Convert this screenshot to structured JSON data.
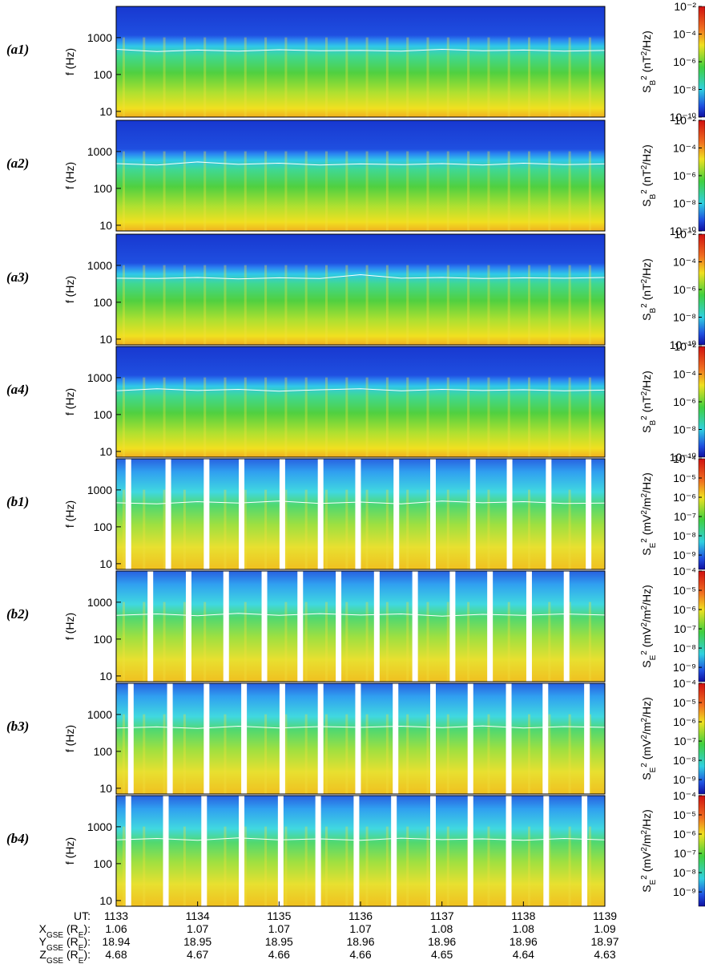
{
  "chart_data": [
    {
      "type": "spectrogram",
      "label": "(a1)",
      "ylabel": "f (Hz)",
      "scale": "a",
      "ylim": [
        7,
        7000
      ],
      "yticks": [
        10,
        100,
        1000
      ],
      "xlim": [
        1133,
        1139
      ],
      "colorbar": {
        "label": [
          "S",
          "B",
          "2",
          " (nT",
          "2",
          "/Hz)"
        ],
        "lim": [
          1e-10,
          0.01
        ],
        "ticks": [
          {
            "value": 0.01,
            "label": "10⁻²"
          },
          {
            "value": 0.0001,
            "label": "10⁻⁴"
          },
          {
            "value": 1e-06,
            "label": "10⁻⁶"
          },
          {
            "value": 1e-08,
            "label": "10⁻⁸"
          },
          {
            "value": 1e-10,
            "label": "10⁻¹⁰"
          }
        ]
      },
      "line": {
        "x": [
          1133,
          1133.5,
          1134,
          1134.5,
          1135,
          1135.5,
          1136,
          1136.5,
          1137,
          1137.5,
          1138,
          1138.5,
          1139
        ],
        "values": [
          480,
          420,
          460,
          430,
          470,
          440,
          450,
          430,
          480,
          440,
          460,
          430,
          450
        ]
      },
      "gaps": []
    },
    {
      "type": "spectrogram",
      "label": "(a2)",
      "ylabel": "f (Hz)",
      "scale": "a",
      "ylim": [
        7,
        7000
      ],
      "yticks": [
        10,
        100,
        1000
      ],
      "xlim": [
        1133,
        1139
      ],
      "colorbar": {
        "label": [
          "S",
          "B",
          "2",
          " (nT",
          "2",
          "/Hz)"
        ],
        "lim": [
          1e-10,
          0.01
        ],
        "ticks": [
          {
            "value": 0.01,
            "label": "10⁻²"
          },
          {
            "value": 0.0001,
            "label": "10⁻⁴"
          },
          {
            "value": 1e-06,
            "label": "10⁻⁶"
          },
          {
            "value": 1e-08,
            "label": "10⁻⁸"
          },
          {
            "value": 1e-10,
            "label": "10⁻¹⁰"
          }
        ]
      },
      "line": {
        "x": [
          1133,
          1133.5,
          1134,
          1134.5,
          1135,
          1135.5,
          1136,
          1136.5,
          1137,
          1137.5,
          1138,
          1138.5,
          1139
        ],
        "values": [
          470,
          430,
          520,
          450,
          480,
          430,
          460,
          440,
          470,
          430,
          480,
          440,
          460
        ]
      },
      "gaps": []
    },
    {
      "type": "spectrogram",
      "label": "(a3)",
      "ylabel": "f (Hz)",
      "scale": "a",
      "ylim": [
        7,
        7000
      ],
      "yticks": [
        10,
        100,
        1000
      ],
      "xlim": [
        1133,
        1139
      ],
      "colorbar": {
        "label": [
          "S",
          "B",
          "2",
          " (nT",
          "2",
          "/Hz)"
        ],
        "lim": [
          1e-10,
          0.01
        ],
        "ticks": [
          {
            "value": 0.01,
            "label": "10⁻²"
          },
          {
            "value": 0.0001,
            "label": "10⁻⁴"
          },
          {
            "value": 1e-06,
            "label": "10⁻⁶"
          },
          {
            "value": 1e-08,
            "label": "10⁻⁸"
          },
          {
            "value": 1e-10,
            "label": "10⁻¹⁰"
          }
        ]
      },
      "line": {
        "x": [
          1133,
          1133.5,
          1134,
          1134.5,
          1135,
          1135.5,
          1136,
          1136.5,
          1137,
          1137.5,
          1138,
          1138.5,
          1139
        ],
        "values": [
          450,
          440,
          470,
          430,
          460,
          440,
          560,
          450,
          470,
          440,
          460,
          450,
          470
        ]
      },
      "gaps": []
    },
    {
      "type": "spectrogram",
      "label": "(a4)",
      "ylabel": "f (Hz)",
      "scale": "a",
      "ylim": [
        7,
        7000
      ],
      "yticks": [
        10,
        100,
        1000
      ],
      "xlim": [
        1133,
        1139
      ],
      "colorbar": {
        "label": [
          "S",
          "B",
          "2",
          " (nT",
          "2",
          "/Hz)"
        ],
        "lim": [
          1e-10,
          0.01
        ],
        "ticks": [
          {
            "value": 0.01,
            "label": "10⁻²"
          },
          {
            "value": 0.0001,
            "label": "10⁻⁴"
          },
          {
            "value": 1e-06,
            "label": "10⁻⁶"
          },
          {
            "value": 1e-08,
            "label": "10⁻⁸"
          },
          {
            "value": 1e-10,
            "label": "10⁻¹⁰"
          }
        ]
      },
      "line": {
        "x": [
          1133,
          1133.5,
          1134,
          1134.5,
          1135,
          1135.5,
          1136,
          1136.5,
          1137,
          1137.5,
          1138,
          1138.5,
          1139
        ],
        "values": [
          440,
          500,
          450,
          480,
          430,
          470,
          500,
          440,
          480,
          450,
          470,
          440,
          460
        ]
      },
      "gaps": []
    },
    {
      "type": "spectrogram",
      "label": "(b1)",
      "ylabel": "f (Hz)",
      "scale": "b",
      "ylim": [
        7,
        7000
      ],
      "yticks": [
        10,
        100,
        1000
      ],
      "xlim": [
        1133,
        1139
      ],
      "colorbar": {
        "label": [
          "S",
          "E",
          "2",
          " (mV",
          "2",
          "/m",
          "2",
          "/Hz)"
        ],
        "lim": [
          1.8e-10,
          0.0001
        ],
        "ticks": [
          {
            "value": 0.0001,
            "label": "10⁻⁴"
          },
          {
            "value": 1e-05,
            "label": "10⁻⁵"
          },
          {
            "value": 1e-06,
            "label": "10⁻⁶"
          },
          {
            "value": 1e-07,
            "label": "10⁻⁷"
          },
          {
            "value": 1e-08,
            "label": "10⁻⁸"
          },
          {
            "value": 1e-09,
            "label": "10⁻⁹"
          }
        ]
      },
      "line": {
        "x": [
          1133,
          1133.5,
          1134,
          1134.5,
          1135,
          1135.5,
          1136,
          1136.5,
          1137,
          1137.5,
          1138,
          1138.5,
          1139
        ],
        "values": [
          450,
          420,
          480,
          440,
          500,
          430,
          470,
          420,
          500,
          450,
          480,
          430,
          440
        ]
      },
      "gaps": [
        1133.15,
        1133.64,
        1134.11,
        1134.54,
        1135.04,
        1135.51,
        1135.97,
        1136.44,
        1136.89,
        1137.38,
        1137.83,
        1138.31,
        1138.8
      ]
    },
    {
      "type": "spectrogram",
      "label": "(b2)",
      "ylabel": "f (Hz)",
      "scale": "b",
      "ylim": [
        7,
        7000
      ],
      "yticks": [
        10,
        100,
        1000
      ],
      "xlim": [
        1133,
        1139
      ],
      "colorbar": {
        "label": [
          "S",
          "E",
          "2",
          " (mV",
          "2",
          "/m",
          "2",
          "/Hz)"
        ],
        "lim": [
          1.8e-10,
          0.0001
        ],
        "ticks": [
          {
            "value": 0.0001,
            "label": "10⁻⁴"
          },
          {
            "value": 1e-05,
            "label": "10⁻⁵"
          },
          {
            "value": 1e-06,
            "label": "10⁻⁶"
          },
          {
            "value": 1e-07,
            "label": "10⁻⁷"
          },
          {
            "value": 1e-08,
            "label": "10⁻⁸"
          },
          {
            "value": 1e-09,
            "label": "10⁻⁹"
          }
        ]
      },
      "line": {
        "x": [
          1133,
          1133.5,
          1134,
          1134.5,
          1135,
          1135.5,
          1136,
          1136.5,
          1137,
          1137.5,
          1138,
          1138.5,
          1139
        ],
        "values": [
          440,
          480,
          430,
          500,
          440,
          490,
          450,
          480,
          420,
          470,
          440,
          480,
          450
        ]
      },
      "gaps": [
        1133.42,
        1133.89,
        1134.35,
        1134.82,
        1135.26,
        1135.73,
        1136.2,
        1136.67,
        1137.13,
        1137.59,
        1138.07,
        1138.53
      ]
    },
    {
      "type": "spectrogram",
      "label": "(b3)",
      "ylabel": "f (Hz)",
      "scale": "b",
      "ylim": [
        7,
        7000
      ],
      "yticks": [
        10,
        100,
        1000
      ],
      "xlim": [
        1133,
        1139
      ],
      "colorbar": {
        "label": [
          "S",
          "E",
          "2",
          " (mV",
          "2",
          "/m",
          "2",
          "/Hz)"
        ],
        "lim": [
          1.8e-10,
          0.0001
        ],
        "ticks": [
          {
            "value": 0.0001,
            "label": "10⁻⁴"
          },
          {
            "value": 1e-05,
            "label": "10⁻⁵"
          },
          {
            "value": 1e-06,
            "label": "10⁻⁶"
          },
          {
            "value": 1e-07,
            "label": "10⁻⁷"
          },
          {
            "value": 1e-08,
            "label": "10⁻⁸"
          },
          {
            "value": 1e-09,
            "label": "10⁻⁹"
          }
        ]
      },
      "line": {
        "x": [
          1133,
          1133.5,
          1134,
          1134.5,
          1135,
          1135.5,
          1136,
          1136.5,
          1137,
          1137.5,
          1138,
          1138.5,
          1139
        ],
        "values": [
          430,
          460,
          420,
          480,
          430,
          470,
          450,
          480,
          440,
          490,
          430,
          470,
          450
        ]
      },
      "gaps": [
        1133.18,
        1133.66,
        1134.11,
        1134.57,
        1135.04,
        1135.51,
        1135.97,
        1136.43,
        1136.89,
        1137.35,
        1137.82,
        1138.27,
        1138.78
      ]
    },
    {
      "type": "spectrogram",
      "label": "(b4)",
      "ylabel": "f (Hz)",
      "scale": "b",
      "ylim": [
        7,
        7000
      ],
      "yticks": [
        10,
        100,
        1000
      ],
      "xlim": [
        1133,
        1139
      ],
      "colorbar": {
        "label": [
          "S",
          "E",
          "2",
          " (mV",
          "2",
          "/m",
          "2",
          "/Hz)"
        ],
        "lim": [
          1.8e-10,
          0.0001
        ],
        "ticks": [
          {
            "value": 0.0001,
            "label": "10⁻⁴"
          },
          {
            "value": 1e-05,
            "label": "10⁻⁵"
          },
          {
            "value": 1e-06,
            "label": "10⁻⁶"
          },
          {
            "value": 1e-07,
            "label": "10⁻⁷"
          },
          {
            "value": 1e-08,
            "label": "10⁻⁸"
          },
          {
            "value": 1e-09,
            "label": "10⁻⁹"
          }
        ]
      },
      "line": {
        "x": [
          1133,
          1133.5,
          1134,
          1134.5,
          1135,
          1135.5,
          1136,
          1136.5,
          1137,
          1137.5,
          1138,
          1138.5,
          1139
        ],
        "values": [
          440,
          480,
          430,
          500,
          440,
          470,
          430,
          490,
          450,
          470,
          430,
          480,
          440
        ]
      },
      "gaps": [
        1133.15,
        1133.61,
        1134.08,
        1134.54,
        1135.02,
        1135.48,
        1135.95,
        1136.41,
        1136.89,
        1137.35,
        1137.82,
        1138.28,
        1138.75
      ]
    }
  ],
  "x_axis": {
    "xlim": [
      1133,
      1139
    ],
    "ticks": [
      1133,
      1134,
      1135,
      1136,
      1137,
      1138,
      1139
    ],
    "ut_label": [
      "UT:"
    ],
    "rows": [
      {
        "label": [
          "X",
          "GSE",
          " (R",
          "E",
          "):"
        ],
        "values": [
          1.06,
          1.07,
          1.07,
          1.07,
          1.08,
          1.08,
          1.09
        ]
      },
      {
        "label": [
          "Y",
          "GSE",
          " (R",
          "E",
          "):"
        ],
        "values": [
          18.94,
          18.95,
          18.95,
          18.96,
          18.96,
          18.96,
          18.97
        ]
      },
      {
        "label": [
          "Z",
          "GSE",
          " (R",
          "E",
          "):"
        ],
        "values": [
          4.68,
          4.67,
          4.66,
          4.66,
          4.65,
          4.64,
          4.63
        ]
      }
    ]
  }
}
